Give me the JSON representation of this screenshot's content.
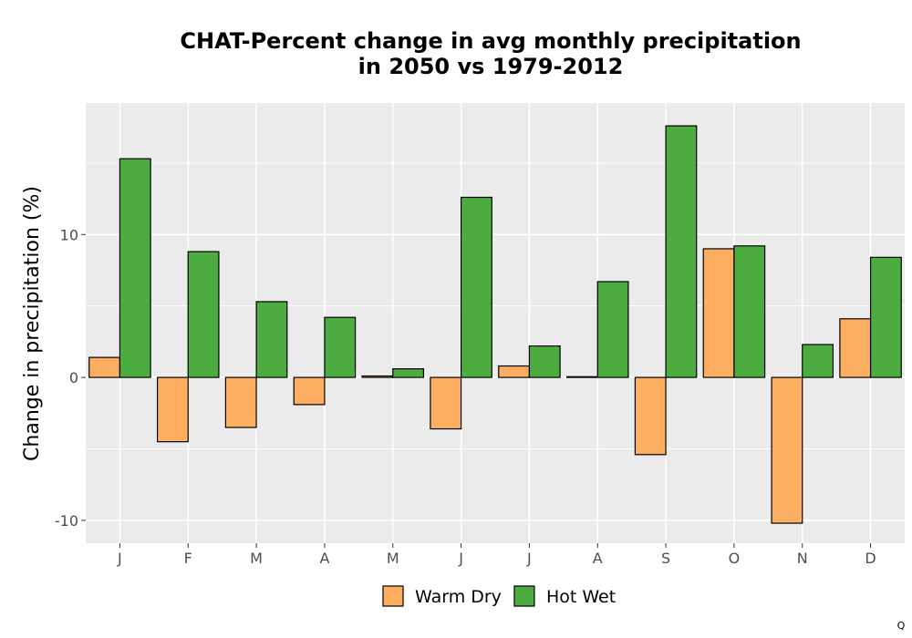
{
  "chart_data": {
    "type": "bar",
    "title": [
      "CHAT-Percent change in avg monthly precipitation",
      "in 2050 vs 1979-2012"
    ],
    "xlabel": "",
    "ylabel": "Change in precipitation (%)",
    "categories": [
      "J",
      "F",
      "M",
      "A",
      "M",
      "J",
      "J",
      "A",
      "S",
      "O",
      "N",
      "D"
    ],
    "series": [
      {
        "name": "Warm Dry",
        "color": "#FDAE61",
        "values": [
          1.4,
          -4.5,
          -3.5,
          -1.9,
          0.1,
          -3.6,
          0.8,
          0.05,
          -5.4,
          9.0,
          -10.2,
          4.1
        ]
      },
      {
        "name": "Hot Wet",
        "color": "#4DAC40",
        "values": [
          15.3,
          8.8,
          5.3,
          4.2,
          0.6,
          12.6,
          2.2,
          6.7,
          17.6,
          9.2,
          2.3,
          8.4
        ]
      }
    ],
    "ylim": [
      -11.6,
      19.2
    ],
    "yticks": [
      -10,
      0,
      10
    ],
    "ytick_labels": [
      "-10",
      "0",
      "10"
    ],
    "grid": true,
    "legend_position": "bottom"
  },
  "corner_mark": "Q"
}
